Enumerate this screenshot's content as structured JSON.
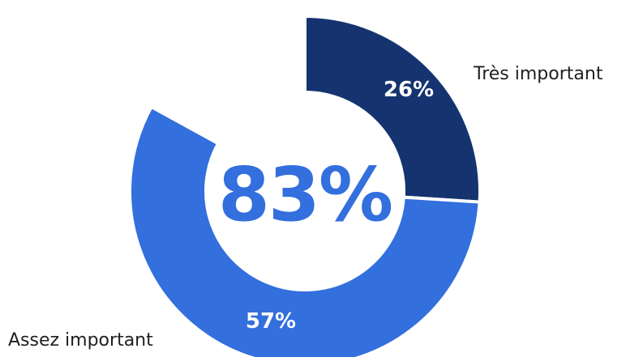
{
  "colors": {
    "tres_important": "#15346f",
    "assez_important": "#336fdd",
    "center_text": "#336fdd",
    "slice_text": "#ffffff",
    "label_text": "#1f1f1f",
    "separator": "#ffffff"
  },
  "chart_data": {
    "type": "pie",
    "variant": "doughnut",
    "center_label": "83%",
    "slices": [
      {
        "label": "Très important",
        "value": 26,
        "value_label": "26%",
        "color_key": "tres_important"
      },
      {
        "label": "Assez important",
        "value": 57,
        "value_label": "57%",
        "color_key": "assez_important"
      }
    ],
    "total": 100
  }
}
